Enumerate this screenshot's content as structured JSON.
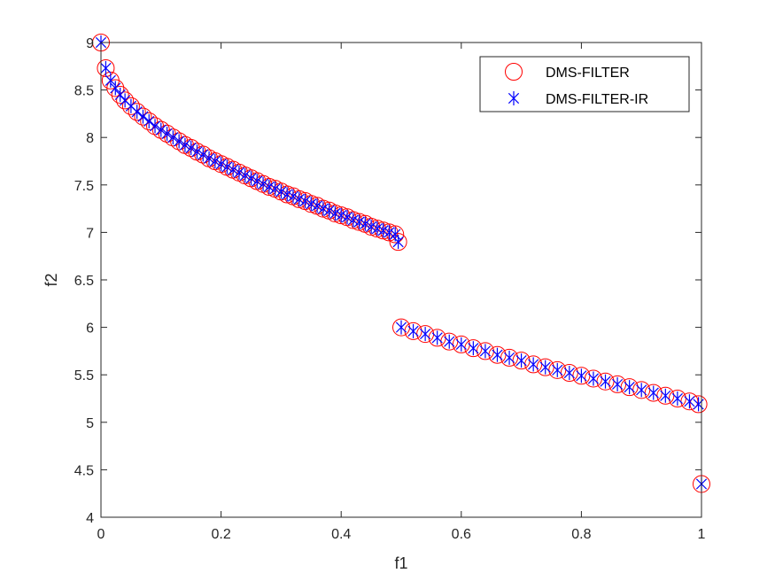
{
  "chart_data": {
    "type": "scatter",
    "xlabel": "f1",
    "ylabel": "f2",
    "xlim": [
      0,
      1
    ],
    "ylim": [
      4,
      9
    ],
    "xticks": [
      "0",
      "0.2",
      "0.4",
      "0.6",
      "0.8",
      "1"
    ],
    "yticks": [
      "4",
      "4.5",
      "5",
      "5.5",
      "6",
      "6.5",
      "7",
      "7.5",
      "8",
      "8.5",
      "9"
    ],
    "grid": false,
    "legend_position": "top-right",
    "series": [
      {
        "name": "DMS-FILTER",
        "marker": "circle",
        "color": "#ff0000",
        "points": [
          [
            0.0,
            9.0
          ],
          [
            0.008,
            8.73
          ],
          [
            0.016,
            8.6
          ],
          [
            0.024,
            8.52
          ],
          [
            0.032,
            8.45
          ],
          [
            0.04,
            8.39
          ],
          [
            0.05,
            8.33
          ],
          [
            0.06,
            8.27
          ],
          [
            0.07,
            8.22
          ],
          [
            0.08,
            8.17
          ],
          [
            0.09,
            8.12
          ],
          [
            0.1,
            8.08
          ],
          [
            0.11,
            8.04
          ],
          [
            0.12,
            8.0
          ],
          [
            0.13,
            7.96
          ],
          [
            0.14,
            7.92
          ],
          [
            0.15,
            7.89
          ],
          [
            0.16,
            7.85
          ],
          [
            0.17,
            7.82
          ],
          [
            0.18,
            7.78
          ],
          [
            0.19,
            7.75
          ],
          [
            0.2,
            7.72
          ],
          [
            0.21,
            7.69
          ],
          [
            0.22,
            7.66
          ],
          [
            0.23,
            7.63
          ],
          [
            0.24,
            7.6
          ],
          [
            0.25,
            7.57
          ],
          [
            0.26,
            7.54
          ],
          [
            0.27,
            7.51
          ],
          [
            0.28,
            7.48
          ],
          [
            0.29,
            7.46
          ],
          [
            0.3,
            7.43
          ],
          [
            0.31,
            7.4
          ],
          [
            0.32,
            7.38
          ],
          [
            0.33,
            7.35
          ],
          [
            0.34,
            7.33
          ],
          [
            0.35,
            7.3
          ],
          [
            0.36,
            7.28
          ],
          [
            0.37,
            7.25
          ],
          [
            0.38,
            7.23
          ],
          [
            0.39,
            7.2
          ],
          [
            0.4,
            7.18
          ],
          [
            0.41,
            7.16
          ],
          [
            0.42,
            7.13
          ],
          [
            0.43,
            7.11
          ],
          [
            0.44,
            7.09
          ],
          [
            0.45,
            7.06
          ],
          [
            0.46,
            7.04
          ],
          [
            0.47,
            7.02
          ],
          [
            0.48,
            7.0
          ],
          [
            0.49,
            6.98
          ],
          [
            0.495,
            6.9
          ],
          [
            0.5,
            6.0
          ],
          [
            0.52,
            5.96
          ],
          [
            0.54,
            5.93
          ],
          [
            0.56,
            5.89
          ],
          [
            0.58,
            5.85
          ],
          [
            0.6,
            5.82
          ],
          [
            0.62,
            5.78
          ],
          [
            0.64,
            5.75
          ],
          [
            0.66,
            5.71
          ],
          [
            0.68,
            5.68
          ],
          [
            0.7,
            5.65
          ],
          [
            0.72,
            5.61
          ],
          [
            0.74,
            5.58
          ],
          [
            0.76,
            5.55
          ],
          [
            0.78,
            5.52
          ],
          [
            0.8,
            5.49
          ],
          [
            0.82,
            5.46
          ],
          [
            0.84,
            5.43
          ],
          [
            0.86,
            5.4
          ],
          [
            0.88,
            5.37
          ],
          [
            0.9,
            5.34
          ],
          [
            0.92,
            5.31
          ],
          [
            0.94,
            5.28
          ],
          [
            0.96,
            5.25
          ],
          [
            0.98,
            5.22
          ],
          [
            0.995,
            5.19
          ],
          [
            1.0,
            4.35
          ]
        ]
      },
      {
        "name": "DMS-FILTER-IR",
        "marker": "asterisk",
        "color": "#0000ff",
        "points": [
          [
            0.0,
            9.0
          ],
          [
            0.008,
            8.73
          ],
          [
            0.016,
            8.6
          ],
          [
            0.024,
            8.52
          ],
          [
            0.032,
            8.45
          ],
          [
            0.04,
            8.39
          ],
          [
            0.05,
            8.33
          ],
          [
            0.06,
            8.27
          ],
          [
            0.07,
            8.22
          ],
          [
            0.08,
            8.17
          ],
          [
            0.09,
            8.12
          ],
          [
            0.1,
            8.08
          ],
          [
            0.11,
            8.04
          ],
          [
            0.12,
            8.0
          ],
          [
            0.13,
            7.96
          ],
          [
            0.14,
            7.92
          ],
          [
            0.15,
            7.89
          ],
          [
            0.16,
            7.85
          ],
          [
            0.17,
            7.82
          ],
          [
            0.18,
            7.78
          ],
          [
            0.19,
            7.75
          ],
          [
            0.2,
            7.72
          ],
          [
            0.21,
            7.69
          ],
          [
            0.22,
            7.66
          ],
          [
            0.23,
            7.63
          ],
          [
            0.24,
            7.6
          ],
          [
            0.25,
            7.57
          ],
          [
            0.26,
            7.54
          ],
          [
            0.27,
            7.51
          ],
          [
            0.28,
            7.48
          ],
          [
            0.29,
            7.46
          ],
          [
            0.3,
            7.43
          ],
          [
            0.31,
            7.4
          ],
          [
            0.32,
            7.38
          ],
          [
            0.33,
            7.35
          ],
          [
            0.34,
            7.33
          ],
          [
            0.35,
            7.3
          ],
          [
            0.36,
            7.28
          ],
          [
            0.37,
            7.25
          ],
          [
            0.38,
            7.23
          ],
          [
            0.39,
            7.2
          ],
          [
            0.4,
            7.18
          ],
          [
            0.41,
            7.16
          ],
          [
            0.42,
            7.13
          ],
          [
            0.43,
            7.11
          ],
          [
            0.44,
            7.09
          ],
          [
            0.45,
            7.06
          ],
          [
            0.46,
            7.04
          ],
          [
            0.47,
            7.02
          ],
          [
            0.48,
            7.0
          ],
          [
            0.49,
            6.98
          ],
          [
            0.495,
            6.9
          ],
          [
            0.5,
            6.0
          ],
          [
            0.52,
            5.96
          ],
          [
            0.54,
            5.93
          ],
          [
            0.56,
            5.89
          ],
          [
            0.58,
            5.85
          ],
          [
            0.6,
            5.82
          ],
          [
            0.62,
            5.78
          ],
          [
            0.64,
            5.75
          ],
          [
            0.66,
            5.71
          ],
          [
            0.68,
            5.68
          ],
          [
            0.7,
            5.65
          ],
          [
            0.72,
            5.61
          ],
          [
            0.74,
            5.58
          ],
          [
            0.76,
            5.55
          ],
          [
            0.78,
            5.52
          ],
          [
            0.8,
            5.49
          ],
          [
            0.82,
            5.46
          ],
          [
            0.84,
            5.43
          ],
          [
            0.86,
            5.4
          ],
          [
            0.88,
            5.37
          ],
          [
            0.9,
            5.34
          ],
          [
            0.92,
            5.31
          ],
          [
            0.94,
            5.28
          ],
          [
            0.96,
            5.25
          ],
          [
            0.98,
            5.22
          ],
          [
            0.995,
            5.19
          ],
          [
            1.0,
            4.35
          ]
        ]
      }
    ]
  }
}
